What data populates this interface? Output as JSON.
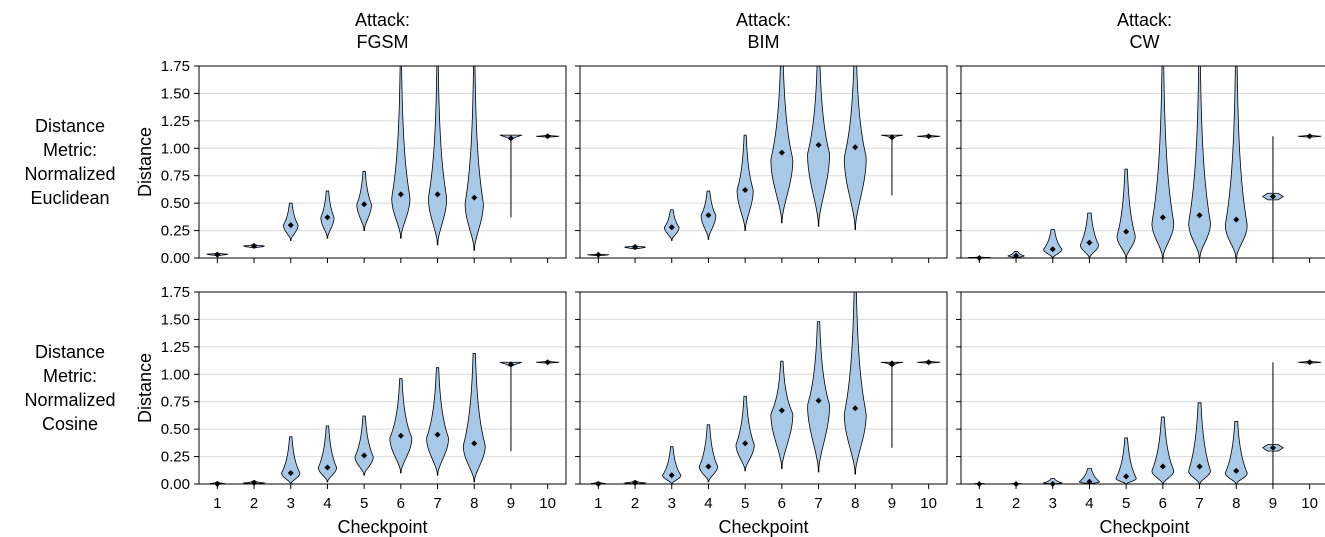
{
  "chart_data": {
    "type": "violin",
    "column_titles": [
      [
        "Attack:",
        "FGSM"
      ],
      [
        "Attack:",
        "BIM"
      ],
      [
        "Attack:",
        "CW"
      ]
    ],
    "row_titles": [
      [
        "Distance",
        "Metric:",
        "Normalized",
        "Euclidean"
      ],
      [
        "Distance",
        "Metric:",
        "Normalized",
        "Cosine"
      ]
    ],
    "ylabel": "Distance",
    "xlabel": "Checkpoint",
    "ylim": [
      0,
      1.75
    ],
    "yticks": [
      "0.00",
      "0.25",
      "0.50",
      "0.75",
      "1.00",
      "1.25",
      "1.50",
      "1.75"
    ],
    "categories": [
      "1",
      "2",
      "3",
      "4",
      "5",
      "6",
      "7",
      "8",
      "9",
      "10"
    ],
    "grid": "horizontal",
    "violin_color": "#a8c8e8",
    "panels": [
      {
        "row": 0,
        "col": 0,
        "violins": [
          {
            "min": 0.02,
            "max": 0.05,
            "median": 0.03,
            "peak": 0.035,
            "width": 0.28,
            "upper": 0.3
          },
          {
            "min": 0.09,
            "max": 0.13,
            "median": 0.11,
            "peak": 0.11,
            "width": 0.28,
            "upper": 0.3
          },
          {
            "min": 0.16,
            "max": 0.5,
            "median": 0.3,
            "peak": 0.3,
            "width": 0.2,
            "upper": 0.6
          },
          {
            "min": 0.18,
            "max": 0.61,
            "median": 0.37,
            "peak": 0.37,
            "width": 0.18,
            "upper": 0.6
          },
          {
            "min": 0.25,
            "max": 0.79,
            "median": 0.49,
            "peak": 0.49,
            "width": 0.2,
            "upper": 0.55
          },
          {
            "min": 0.18,
            "max": 1.75,
            "median": 0.58,
            "peak": 0.55,
            "width": 0.25,
            "upper": 0.4
          },
          {
            "min": 0.12,
            "max": 1.75,
            "median": 0.58,
            "peak": 0.55,
            "width": 0.25,
            "upper": 0.4
          },
          {
            "min": 0.07,
            "max": 1.75,
            "median": 0.55,
            "peak": 0.5,
            "width": 0.25,
            "upper": 0.4
          },
          {
            "min": 0.37,
            "max": 1.12,
            "median": 1.09,
            "peak": 1.1,
            "width": 0.3,
            "upper": 0.05,
            "shape": "cap"
          },
          {
            "min": 1.1,
            "max": 1.12,
            "median": 1.11,
            "peak": 1.11,
            "width": 0.3,
            "upper": 0.5
          }
        ]
      },
      {
        "row": 0,
        "col": 1,
        "violins": [
          {
            "min": 0.02,
            "max": 0.04,
            "median": 0.03,
            "peak": 0.03,
            "width": 0.28,
            "upper": 0.3
          },
          {
            "min": 0.08,
            "max": 0.12,
            "median": 0.1,
            "peak": 0.1,
            "width": 0.28,
            "upper": 0.3
          },
          {
            "min": 0.16,
            "max": 0.44,
            "median": 0.28,
            "peak": 0.28,
            "width": 0.2,
            "upper": 0.6
          },
          {
            "min": 0.17,
            "max": 0.61,
            "median": 0.39,
            "peak": 0.39,
            "width": 0.2,
            "upper": 0.6
          },
          {
            "min": 0.25,
            "max": 1.12,
            "median": 0.62,
            "peak": 0.62,
            "width": 0.22,
            "upper": 0.5
          },
          {
            "min": 0.32,
            "max": 1.75,
            "median": 0.96,
            "peak": 0.9,
            "width": 0.3,
            "upper": 0.5
          },
          {
            "min": 0.29,
            "max": 1.75,
            "median": 1.03,
            "peak": 0.95,
            "width": 0.3,
            "upper": 0.5
          },
          {
            "min": 0.26,
            "max": 1.75,
            "median": 1.01,
            "peak": 0.92,
            "width": 0.3,
            "upper": 0.5
          },
          {
            "min": 0.57,
            "max": 1.12,
            "median": 1.1,
            "peak": 1.11,
            "width": 0.3,
            "upper": 0.05,
            "shape": "cap"
          },
          {
            "min": 1.1,
            "max": 1.12,
            "median": 1.11,
            "peak": 1.11,
            "width": 0.3,
            "upper": 0.5
          }
        ]
      },
      {
        "row": 0,
        "col": 2,
        "violins": [
          {
            "min": 0.0,
            "max": 0.01,
            "median": 0.0,
            "peak": 0.005,
            "width": 0.28,
            "upper": 0.3
          },
          {
            "min": 0.0,
            "max": 0.06,
            "median": 0.02,
            "peak": 0.02,
            "width": 0.22,
            "upper": 0.6
          },
          {
            "min": 0.0,
            "max": 0.26,
            "median": 0.08,
            "peak": 0.08,
            "width": 0.25,
            "upper": 0.6
          },
          {
            "min": 0.0,
            "max": 0.41,
            "median": 0.14,
            "peak": 0.12,
            "width": 0.25,
            "upper": 0.6
          },
          {
            "min": 0.0,
            "max": 0.81,
            "median": 0.24,
            "peak": 0.2,
            "width": 0.25,
            "upper": 0.5
          },
          {
            "min": 0.0,
            "max": 1.75,
            "median": 0.37,
            "peak": 0.32,
            "width": 0.3,
            "upper": 0.4
          },
          {
            "min": 0.0,
            "max": 1.75,
            "median": 0.39,
            "peak": 0.32,
            "width": 0.3,
            "upper": 0.4
          },
          {
            "min": 0.0,
            "max": 1.75,
            "median": 0.35,
            "peak": 0.3,
            "width": 0.3,
            "upper": 0.4
          },
          {
            "min": 0.0,
            "max": 1.11,
            "median": 0.56,
            "peak": 0.56,
            "width": 0.28,
            "upper": 0.05,
            "shape": "flat"
          },
          {
            "min": 1.1,
            "max": 1.12,
            "median": 1.11,
            "peak": 1.11,
            "width": 0.3,
            "upper": 0.5
          }
        ]
      },
      {
        "row": 1,
        "col": 0,
        "violins": [
          {
            "min": 0.0,
            "max": 0.02,
            "median": 0.0,
            "peak": 0.005,
            "width": 0.2,
            "upper": 0.4
          },
          {
            "min": 0.0,
            "max": 0.03,
            "median": 0.01,
            "peak": 0.01,
            "width": 0.28,
            "upper": 0.4
          },
          {
            "min": 0.0,
            "max": 0.43,
            "median": 0.1,
            "peak": 0.1,
            "width": 0.25,
            "upper": 0.5
          },
          {
            "min": 0.02,
            "max": 0.53,
            "median": 0.15,
            "peak": 0.15,
            "width": 0.25,
            "upper": 0.5
          },
          {
            "min": 0.08,
            "max": 0.62,
            "median": 0.26,
            "peak": 0.25,
            "width": 0.25,
            "upper": 0.5
          },
          {
            "min": 0.1,
            "max": 0.96,
            "median": 0.44,
            "peak": 0.42,
            "width": 0.3,
            "upper": 0.45
          },
          {
            "min": 0.08,
            "max": 1.06,
            "median": 0.45,
            "peak": 0.42,
            "width": 0.3,
            "upper": 0.45
          },
          {
            "min": 0.02,
            "max": 1.19,
            "median": 0.37,
            "peak": 0.35,
            "width": 0.3,
            "upper": 0.45
          },
          {
            "min": 0.3,
            "max": 1.11,
            "median": 1.09,
            "peak": 1.09,
            "width": 0.3,
            "upper": 0.05,
            "shape": "cap"
          },
          {
            "min": 1.1,
            "max": 1.12,
            "median": 1.11,
            "peak": 1.11,
            "width": 0.3,
            "upper": 0.5
          }
        ]
      },
      {
        "row": 1,
        "col": 1,
        "violins": [
          {
            "min": 0.0,
            "max": 0.02,
            "median": 0.0,
            "peak": 0.005,
            "width": 0.2,
            "upper": 0.4
          },
          {
            "min": 0.0,
            "max": 0.03,
            "median": 0.01,
            "peak": 0.01,
            "width": 0.28,
            "upper": 0.4
          },
          {
            "min": 0.0,
            "max": 0.34,
            "median": 0.08,
            "peak": 0.08,
            "width": 0.25,
            "upper": 0.5
          },
          {
            "min": 0.02,
            "max": 0.54,
            "median": 0.16,
            "peak": 0.16,
            "width": 0.25,
            "upper": 0.5
          },
          {
            "min": 0.12,
            "max": 0.8,
            "median": 0.37,
            "peak": 0.36,
            "width": 0.25,
            "upper": 0.5
          },
          {
            "min": 0.14,
            "max": 1.12,
            "median": 0.67,
            "peak": 0.64,
            "width": 0.3,
            "upper": 0.45
          },
          {
            "min": 0.11,
            "max": 1.48,
            "median": 0.76,
            "peak": 0.72,
            "width": 0.3,
            "upper": 0.45
          },
          {
            "min": 0.09,
            "max": 1.75,
            "median": 0.69,
            "peak": 0.64,
            "width": 0.3,
            "upper": 0.45
          },
          {
            "min": 0.33,
            "max": 1.11,
            "median": 1.1,
            "peak": 1.1,
            "width": 0.3,
            "upper": 0.05,
            "shape": "cap"
          },
          {
            "min": 1.1,
            "max": 1.12,
            "median": 1.11,
            "peak": 1.11,
            "width": 0.3,
            "upper": 0.5
          }
        ]
      },
      {
        "row": 1,
        "col": 2,
        "violins": [
          {
            "min": 0.0,
            "max": 0.01,
            "median": 0.0,
            "peak": 0.003,
            "width": 0.15,
            "upper": 0.4
          },
          {
            "min": 0.0,
            "max": 0.01,
            "median": 0.0,
            "peak": 0.003,
            "width": 0.15,
            "upper": 0.4
          },
          {
            "min": 0.0,
            "max": 0.05,
            "median": 0.0,
            "peak": 0.01,
            "width": 0.25,
            "upper": 0.6
          },
          {
            "min": 0.0,
            "max": 0.14,
            "median": 0.02,
            "peak": 0.02,
            "width": 0.28,
            "upper": 0.6
          },
          {
            "min": 0.0,
            "max": 0.42,
            "median": 0.07,
            "peak": 0.05,
            "width": 0.28,
            "upper": 0.5
          },
          {
            "min": 0.0,
            "max": 0.61,
            "median": 0.16,
            "peak": 0.12,
            "width": 0.3,
            "upper": 0.5
          },
          {
            "min": 0.0,
            "max": 0.74,
            "median": 0.16,
            "peak": 0.12,
            "width": 0.3,
            "upper": 0.5
          },
          {
            "min": 0.0,
            "max": 0.57,
            "median": 0.12,
            "peak": 0.1,
            "width": 0.3,
            "upper": 0.5
          },
          {
            "min": 0.0,
            "max": 1.11,
            "median": 0.33,
            "peak": 0.33,
            "width": 0.28,
            "upper": 0.05,
            "shape": "flat"
          },
          {
            "min": 1.1,
            "max": 1.12,
            "median": 1.11,
            "peak": 1.11,
            "width": 0.3,
            "upper": 0.5
          }
        ]
      }
    ]
  }
}
